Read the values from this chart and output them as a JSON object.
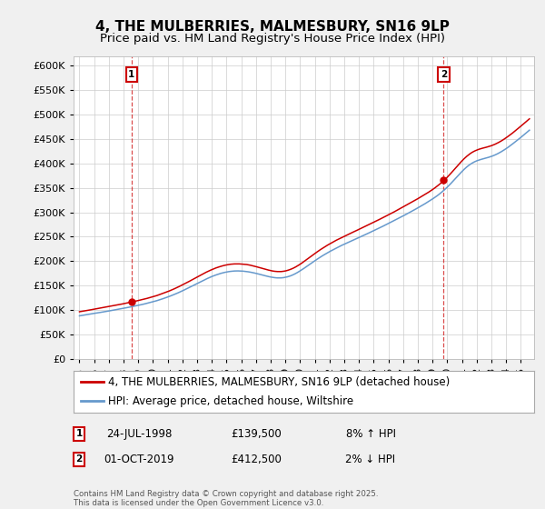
{
  "title": "4, THE MULBERRIES, MALMESBURY, SN16 9LP",
  "subtitle": "Price paid vs. HM Land Registry's House Price Index (HPI)",
  "ylim": [
    0,
    620000
  ],
  "yticks": [
    0,
    50000,
    100000,
    150000,
    200000,
    250000,
    300000,
    350000,
    400000,
    450000,
    500000,
    550000,
    600000
  ],
  "sale1_date": "24-JUL-1998",
  "sale1_price": 139500,
  "sale1_year": 1998.54,
  "sale1_val": 139500,
  "sale2_date": "01-OCT-2019",
  "sale2_price": 412500,
  "sale2_year": 2019.75,
  "sale2_val": 412500,
  "sale1_pct": "8% ↑ HPI",
  "sale2_pct": "2% ↓ HPI",
  "legend1": "4, THE MULBERRIES, MALMESBURY, SN16 9LP (detached house)",
  "legend2": "HPI: Average price, detached house, Wiltshire",
  "footnote": "Contains HM Land Registry data © Crown copyright and database right 2025.\nThis data is licensed under the Open Government Licence v3.0.",
  "line_color_red": "#cc0000",
  "line_color_blue": "#6699cc",
  "background_color": "#f0f0f0",
  "plot_bg_color": "#ffffff",
  "grid_color": "#cccccc",
  "title_fontsize": 11,
  "subtitle_fontsize": 9.5,
  "axis_fontsize": 8,
  "legend_fontsize": 8.5
}
